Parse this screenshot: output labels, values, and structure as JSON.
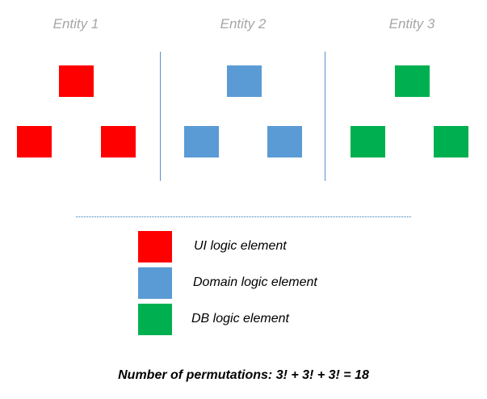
{
  "entities": [
    {
      "title": "Entity 1",
      "color": "#ff0000",
      "element_role": "UI logic element"
    },
    {
      "title": "Entity 2",
      "color": "#5b9bd5",
      "element_role": "Domain logic element"
    },
    {
      "title": "Entity 3",
      "color": "#00b050",
      "element_role": "DB logic element"
    }
  ],
  "legend": [
    {
      "label": "UI logic element",
      "color": "#ff0000"
    },
    {
      "label": "Domain logic element",
      "color": "#5b9bd5"
    },
    {
      "label": "DB logic element",
      "color": "#00b050"
    }
  ],
  "formula": "Number of permutations: 3! + 3! + 3! = 18"
}
